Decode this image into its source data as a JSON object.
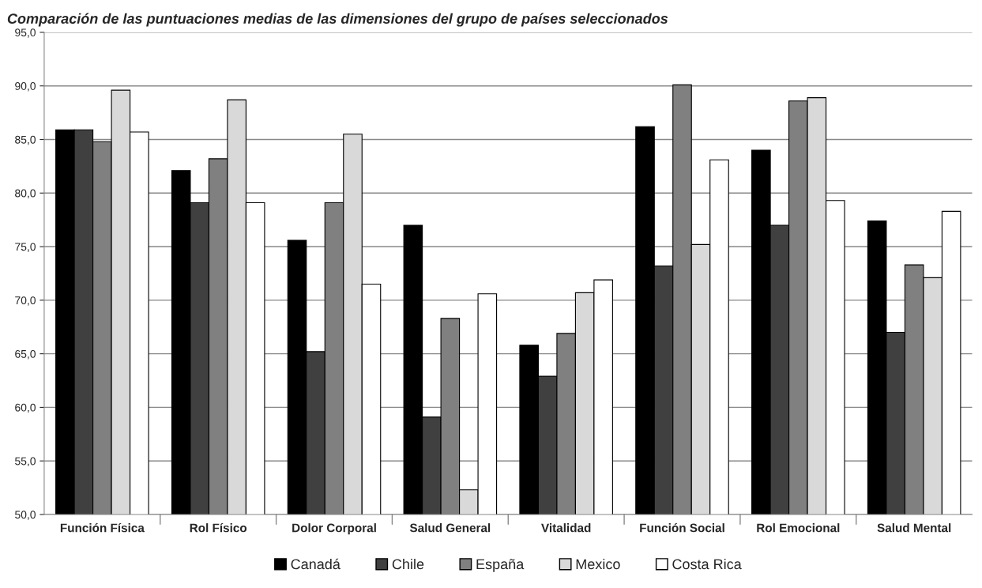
{
  "chart_data": {
    "type": "bar",
    "title": "Comparación de las puntuaciones medias de las dimensiones del grupo de países seleccionados",
    "categories": [
      "Función Física",
      "Rol Físico",
      "Dolor Corporal",
      "Salud General",
      "Vitalidad",
      "Función Social",
      "Rol Emocional",
      "Salud Mental"
    ],
    "series": [
      {
        "name": "Canadá",
        "color": "#000000",
        "values": [
          85.9,
          82.1,
          75.6,
          77.0,
          65.8,
          86.2,
          84.0,
          77.4
        ]
      },
      {
        "name": "Chile",
        "color": "#404040",
        "values": [
          85.9,
          79.1,
          65.2,
          59.1,
          62.9,
          73.2,
          77.0,
          67.0
        ]
      },
      {
        "name": "España",
        "color": "#808080",
        "values": [
          84.8,
          83.2,
          79.1,
          68.3,
          66.9,
          90.1,
          88.6,
          73.3
        ]
      },
      {
        "name": "Mexico",
        "color": "#d9d9d9",
        "values": [
          89.6,
          88.7,
          85.5,
          52.3,
          70.7,
          75.2,
          88.9,
          72.1
        ]
      },
      {
        "name": "Costa Rica",
        "color": "#ffffff",
        "values": [
          85.7,
          79.1,
          71.5,
          70.6,
          71.9,
          83.1,
          79.3,
          78.3
        ]
      }
    ],
    "ylim": [
      50,
      95
    ],
    "yticks": [
      {
        "value": 50,
        "label": "50,0"
      },
      {
        "value": 55,
        "label": "55,0"
      },
      {
        "value": 60,
        "label": "60,0"
      },
      {
        "value": 65,
        "label": "65,0"
      },
      {
        "value": 70,
        "label": "70,0"
      },
      {
        "value": 75,
        "label": "75,0"
      },
      {
        "value": 80,
        "label": "80,0"
      },
      {
        "value": 85,
        "label": "85,0"
      },
      {
        "value": 90,
        "label": "90,0"
      },
      {
        "value": 95,
        "label": "95,0"
      }
    ],
    "grid": "y",
    "legend": "bottom"
  }
}
